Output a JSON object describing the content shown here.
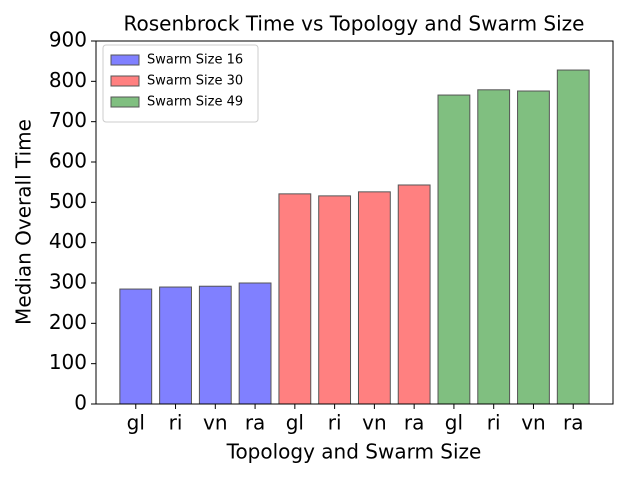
{
  "chart_data": {
    "type": "bar",
    "title": "Rosenbrock Time vs Topology and Swarm Size",
    "x_label": "Topology and Swarm Size",
    "y_label": "Median Overall Time",
    "categories": [
      "gl",
      "ri",
      "vn",
      "ra",
      "gl",
      "ri",
      "vn",
      "ra",
      "gl",
      "ri",
      "vn",
      "ra"
    ],
    "series": [
      {
        "name": "Swarm Size 16",
        "color": "#8080ff",
        "values": [
          285,
          290,
          292,
          300,
          null,
          null,
          null,
          null,
          null,
          null,
          null,
          null
        ]
      },
      {
        "name": "Swarm Size 30",
        "color": "#ff8080",
        "values": [
          null,
          null,
          null,
          null,
          521,
          516,
          526,
          543,
          null,
          null,
          null,
          null
        ]
      },
      {
        "name": "Swarm Size 49",
        "color": "#80bf80",
        "values": [
          null,
          null,
          null,
          null,
          null,
          null,
          null,
          null,
          766,
          779,
          776,
          828
        ]
      }
    ],
    "ylim": [
      0,
      900
    ],
    "yticks": [
      0,
      100,
      200,
      300,
      400,
      500,
      600,
      700,
      800,
      900
    ],
    "grid": false,
    "legend": "upper left"
  }
}
